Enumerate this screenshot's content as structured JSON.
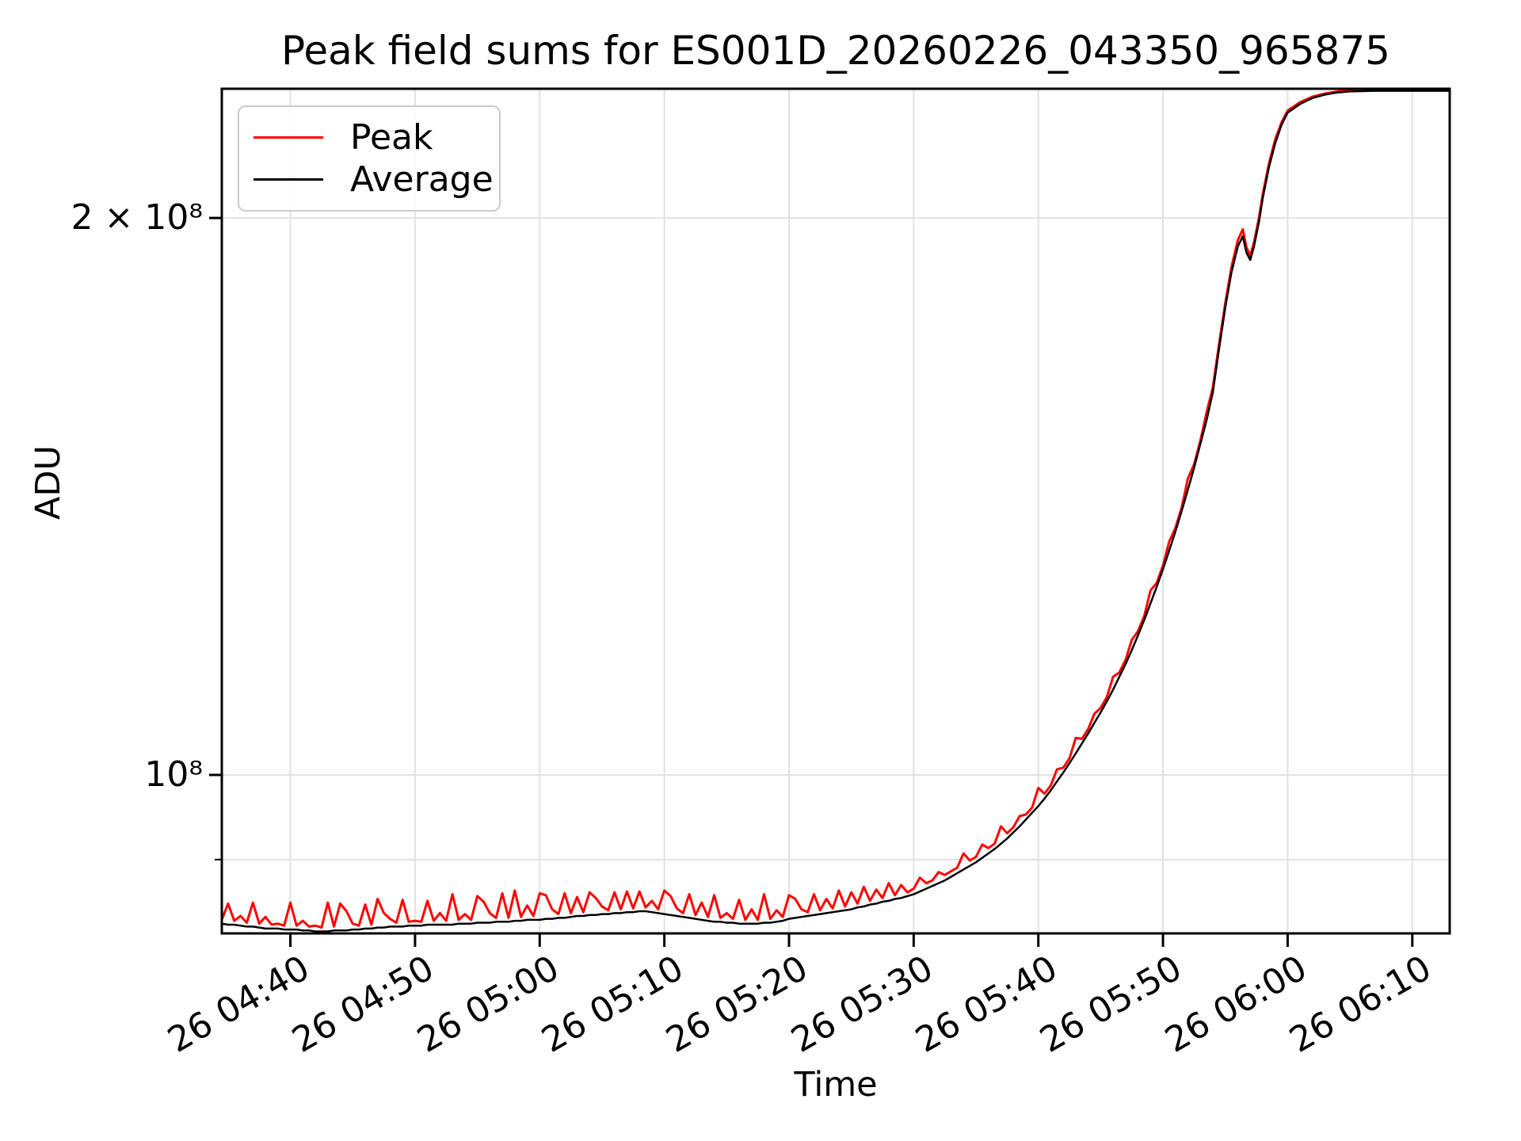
{
  "figure": {
    "title": "Peak field sums for ES001D_20260226_043350_965875",
    "xlabel": "Time",
    "ylabel": "ADU"
  },
  "legend": {
    "entries": [
      {
        "label": "Peak",
        "color": "#ff0000"
      },
      {
        "label": "Average",
        "color": "#000000"
      }
    ]
  },
  "chart_data": {
    "type": "line",
    "title": "Peak field sums for ES001D_20260226_043350_965875",
    "xlabel": "Time",
    "ylabel": "ADU",
    "y_scale": "log",
    "grid": true,
    "grid_color": "#e2e2e2",
    "legend_position": "upper left",
    "x_unit": "minutes, t=0 at 26 04:34",
    "value_unit": "1e7 ADU",
    "xlim_minutes": [
      0.5,
      99
    ],
    "ylim_adu": [
      82100000.0,
      235000000.0
    ],
    "x_ticks": [
      {
        "t": 6,
        "label": "26 04:40"
      },
      {
        "t": 16,
        "label": "26 04:50"
      },
      {
        "t": 26,
        "label": "26 05:00"
      },
      {
        "t": 36,
        "label": "26 05:10"
      },
      {
        "t": 46,
        "label": "26 05:20"
      },
      {
        "t": 56,
        "label": "26 05:30"
      },
      {
        "t": 66,
        "label": "26 05:40"
      },
      {
        "t": 76,
        "label": "26 05:50"
      },
      {
        "t": 86,
        "label": "26 06:00"
      },
      {
        "t": 96,
        "label": "26 06:10"
      }
    ],
    "y_ticks": [
      {
        "v": 20,
        "label": "2 × 10⁸"
      },
      {
        "v": 10,
        "label": "10⁸"
      }
    ],
    "y_minor_ticks_1e7": [
      9
    ],
    "y_gridlines_1e7": [
      9,
      10,
      20
    ],
    "series": [
      {
        "name": "Peak",
        "color": "#ff0000",
        "column": 1
      },
      {
        "name": "Average",
        "color": "#000000",
        "column": 2
      }
    ],
    "columns": [
      "t_minutes",
      "peak_1e7_adu",
      "average_1e7_adu"
    ],
    "points": [
      [
        0.5,
        8.35,
        8.31
      ],
      [
        1,
        8.52,
        8.3
      ],
      [
        1.5,
        8.34,
        8.3
      ],
      [
        2,
        8.39,
        8.29
      ],
      [
        2.5,
        8.32,
        8.28
      ],
      [
        3,
        8.53,
        8.28
      ],
      [
        3.5,
        8.31,
        8.27
      ],
      [
        4,
        8.38,
        8.26
      ],
      [
        4.5,
        8.3,
        8.26
      ],
      [
        5,
        8.31,
        8.26
      ],
      [
        5.5,
        8.29,
        8.25
      ],
      [
        6,
        8.53,
        8.25
      ],
      [
        6.5,
        8.29,
        8.25
      ],
      [
        7,
        8.34,
        8.24
      ],
      [
        7.5,
        8.28,
        8.24
      ],
      [
        8,
        8.29,
        8.23
      ],
      [
        8.5,
        8.27,
        8.23
      ],
      [
        9,
        8.53,
        8.23
      ],
      [
        9.5,
        8.28,
        8.24
      ],
      [
        10,
        8.52,
        8.24
      ],
      [
        10.5,
        8.44,
        8.24
      ],
      [
        11,
        8.31,
        8.25
      ],
      [
        11.5,
        8.29,
        8.25
      ],
      [
        12,
        8.51,
        8.26
      ],
      [
        12.5,
        8.3,
        8.26
      ],
      [
        13,
        8.57,
        8.27
      ],
      [
        13.5,
        8.42,
        8.27
      ],
      [
        14,
        8.36,
        8.28
      ],
      [
        14.5,
        8.32,
        8.28
      ],
      [
        15,
        8.56,
        8.28
      ],
      [
        15.5,
        8.33,
        8.29
      ],
      [
        16,
        8.34,
        8.29
      ],
      [
        16.5,
        8.33,
        8.29
      ],
      [
        17,
        8.55,
        8.3
      ],
      [
        17.5,
        8.34,
        8.3
      ],
      [
        18,
        8.42,
        8.3
      ],
      [
        18.5,
        8.34,
        8.3
      ],
      [
        19,
        8.62,
        8.3
      ],
      [
        19.5,
        8.35,
        8.31
      ],
      [
        20,
        8.41,
        8.31
      ],
      [
        20.5,
        8.35,
        8.31
      ],
      [
        21,
        8.6,
        8.32
      ],
      [
        21.5,
        8.54,
        8.32
      ],
      [
        22,
        8.42,
        8.32
      ],
      [
        22.5,
        8.37,
        8.33
      ],
      [
        23,
        8.63,
        8.33
      ],
      [
        23.5,
        8.37,
        8.33
      ],
      [
        24,
        8.66,
        8.34
      ],
      [
        24.5,
        8.38,
        8.34
      ],
      [
        25,
        8.5,
        8.35
      ],
      [
        25.5,
        8.39,
        8.35
      ],
      [
        26,
        8.63,
        8.35
      ],
      [
        26.5,
        8.61,
        8.36
      ],
      [
        27,
        8.46,
        8.36
      ],
      [
        27.5,
        8.41,
        8.37
      ],
      [
        28,
        8.63,
        8.37
      ],
      [
        28.5,
        8.42,
        8.38
      ],
      [
        29,
        8.59,
        8.39
      ],
      [
        29.5,
        8.43,
        8.39
      ],
      [
        30,
        8.64,
        8.4
      ],
      [
        30.5,
        8.58,
        8.4
      ],
      [
        31,
        8.49,
        8.41
      ],
      [
        31.5,
        8.45,
        8.41
      ],
      [
        32,
        8.64,
        8.42
      ],
      [
        32.5,
        8.46,
        8.42
      ],
      [
        33,
        8.65,
        8.43
      ],
      [
        33.5,
        8.47,
        8.43
      ],
      [
        34,
        8.65,
        8.44
      ],
      [
        34.5,
        8.48,
        8.44
      ],
      [
        35,
        8.55,
        8.43
      ],
      [
        35.5,
        8.46,
        8.42
      ],
      [
        36,
        8.66,
        8.41
      ],
      [
        36.5,
        8.6,
        8.4
      ],
      [
        37,
        8.47,
        8.39
      ],
      [
        37.5,
        8.42,
        8.38
      ],
      [
        38,
        8.62,
        8.37
      ],
      [
        38.5,
        8.4,
        8.36
      ],
      [
        39,
        8.53,
        8.35
      ],
      [
        39.5,
        8.38,
        8.34
      ],
      [
        40,
        8.61,
        8.33
      ],
      [
        40.5,
        8.37,
        8.33
      ],
      [
        41,
        8.42,
        8.32
      ],
      [
        41.5,
        8.36,
        8.32
      ],
      [
        42,
        8.56,
        8.31
      ],
      [
        42.5,
        8.35,
        8.31
      ],
      [
        43,
        8.46,
        8.31
      ],
      [
        43.5,
        8.35,
        8.31
      ],
      [
        44,
        8.62,
        8.32
      ],
      [
        44.5,
        8.36,
        8.32
      ],
      [
        45,
        8.45,
        8.33
      ],
      [
        45.5,
        8.38,
        8.34
      ],
      [
        46,
        8.61,
        8.36
      ],
      [
        46.5,
        8.57,
        8.37
      ],
      [
        47,
        8.46,
        8.38
      ],
      [
        47.5,
        8.43,
        8.39
      ],
      [
        48,
        8.62,
        8.4
      ],
      [
        48.5,
        8.45,
        8.41
      ],
      [
        49,
        8.57,
        8.42
      ],
      [
        49.5,
        8.47,
        8.43
      ],
      [
        50,
        8.66,
        8.44
      ],
      [
        50.5,
        8.49,
        8.45
      ],
      [
        51,
        8.64,
        8.46
      ],
      [
        51.5,
        8.52,
        8.48
      ],
      [
        52,
        8.7,
        8.49
      ],
      [
        52.5,
        8.55,
        8.51
      ],
      [
        53,
        8.67,
        8.52
      ],
      [
        53.5,
        8.58,
        8.54
      ],
      [
        54,
        8.74,
        8.55
      ],
      [
        54.5,
        8.61,
        8.57
      ],
      [
        55,
        8.72,
        8.58
      ],
      [
        55.5,
        8.64,
        8.6
      ],
      [
        56,
        8.68,
        8.62
      ],
      [
        56.5,
        8.8,
        8.65
      ],
      [
        57,
        8.74,
        8.68
      ],
      [
        57.5,
        8.77,
        8.71
      ],
      [
        58,
        8.86,
        8.74
      ],
      [
        58.5,
        8.83,
        8.77
      ],
      [
        59,
        8.87,
        8.81
      ],
      [
        59.5,
        8.91,
        8.85
      ],
      [
        60,
        9.07,
        8.89
      ],
      [
        60.5,
        8.99,
        8.93
      ],
      [
        61,
        9.03,
        8.97
      ],
      [
        61.5,
        9.17,
        9.02
      ],
      [
        62,
        9.13,
        9.07
      ],
      [
        62.5,
        9.18,
        9.12
      ],
      [
        63,
        9.38,
        9.18
      ],
      [
        63.5,
        9.3,
        9.24
      ],
      [
        64,
        9.37,
        9.31
      ],
      [
        64.5,
        9.5,
        9.38
      ],
      [
        65,
        9.52,
        9.46
      ],
      [
        65.5,
        9.6,
        9.54
      ],
      [
        66,
        9.84,
        9.62
      ],
      [
        66.5,
        9.77,
        9.71
      ],
      [
        67,
        9.87,
        9.81
      ],
      [
        67.5,
        10.07,
        9.92
      ],
      [
        68,
        10.09,
        10.03
      ],
      [
        68.5,
        10.21,
        10.15
      ],
      [
        69,
        10.47,
        10.27
      ],
      [
        69.5,
        10.46,
        10.4
      ],
      [
        70,
        10.59,
        10.53
      ],
      [
        70.5,
        10.79,
        10.67
      ],
      [
        71,
        10.87,
        10.81
      ],
      [
        71.5,
        11.02,
        10.96
      ],
      [
        72,
        11.3,
        11.12
      ],
      [
        72.5,
        11.36,
        11.3
      ],
      [
        73,
        11.54,
        11.48
      ],
      [
        73.5,
        11.83,
        11.68
      ],
      [
        74,
        11.96,
        11.9
      ],
      [
        74.5,
        12.19,
        12.13
      ],
      [
        75,
        12.58,
        12.38
      ],
      [
        75.5,
        12.7,
        12.64
      ],
      [
        76,
        12.98,
        12.92
      ],
      [
        76.5,
        13.37,
        13.22
      ],
      [
        77,
        13.6,
        13.54
      ],
      [
        77.5,
        13.95,
        13.89
      ],
      [
        78,
        14.46,
        14.26
      ],
      [
        78.5,
        14.72,
        14.66
      ],
      [
        79,
        15.16,
        15.1
      ],
      [
        79.5,
        15.7,
        15.55
      ],
      [
        80,
        16.2,
        16.1
      ],
      [
        80.5,
        17.1,
        17.0
      ],
      [
        81,
        18.0,
        17.9
      ],
      [
        81.5,
        18.82,
        18.7
      ],
      [
        82,
        19.45,
        19.3
      ],
      [
        82.4,
        19.72,
        19.55
      ],
      [
        82.7,
        19.28,
        19.15
      ],
      [
        83,
        19.08,
        18.98
      ],
      [
        83.3,
        19.4,
        19.3
      ],
      [
        83.7,
        20.0,
        19.9
      ],
      [
        84,
        20.6,
        20.5
      ],
      [
        84.5,
        21.4,
        21.3
      ],
      [
        85,
        22.05,
        21.95
      ],
      [
        85.5,
        22.52,
        22.45
      ],
      [
        86,
        22.86,
        22.8
      ],
      [
        87,
        23.1,
        23.05
      ],
      [
        88,
        23.26,
        23.22
      ],
      [
        89,
        23.35,
        23.32
      ],
      [
        90,
        23.41,
        23.38
      ],
      [
        91,
        23.44,
        23.41
      ],
      [
        92,
        23.45,
        23.42
      ],
      [
        93,
        23.46,
        23.43
      ],
      [
        95,
        23.46,
        23.43
      ],
      [
        97,
        23.46,
        23.43
      ],
      [
        99,
        23.46,
        23.43
      ]
    ]
  }
}
